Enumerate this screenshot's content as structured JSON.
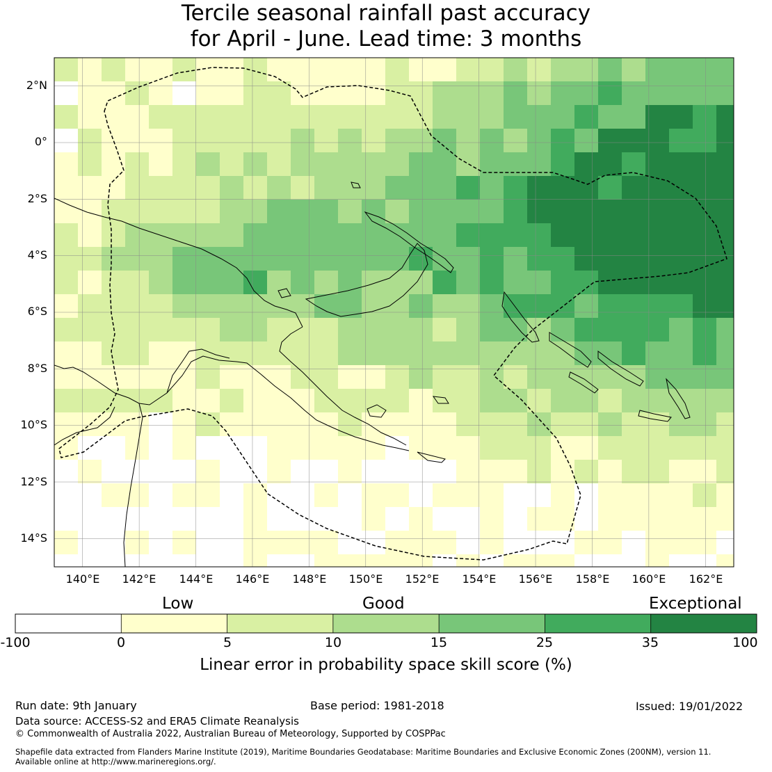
{
  "title": {
    "line1": "Tercile seasonal rainfall past accuracy",
    "line2": "for April - June. Lead time: 3 months"
  },
  "map": {
    "lat_ticks": [
      "2°N",
      "0°",
      "2°S",
      "4°S",
      "6°S",
      "8°S",
      "10°S",
      "12°S",
      "14°S"
    ],
    "lon_ticks": [
      "140°E",
      "142°E",
      "144°E",
      "146°E",
      "148°E",
      "150°E",
      "152°E",
      "154°E",
      "156°E",
      "158°E",
      "160°E",
      "162°E"
    ],
    "lat_tick_values": [
      2,
      0,
      -2,
      -4,
      -6,
      -8,
      -10,
      -12,
      -14
    ],
    "lon_tick_values": [
      140,
      142,
      144,
      146,
      148,
      150,
      152,
      154,
      156,
      158,
      160,
      162
    ],
    "lon_range": [
      139,
      163
    ],
    "lat_range": [
      -15,
      3
    ],
    "region": "Papua New Guinea EEZ"
  },
  "colorbar": {
    "category_labels": [
      "Low",
      "Good",
      "Exceptional"
    ],
    "tick_labels": [
      "-100",
      "0",
      "5",
      "10",
      "15",
      "25",
      "35",
      "100"
    ],
    "colors": [
      "#ffffff",
      "#ffffcc",
      "#d9f0a3",
      "#addd8e",
      "#78c679",
      "#41ab5d",
      "#238443"
    ],
    "axis_label": "Linear error in probability space skill score (%)"
  },
  "footer": {
    "run_date": "Run date: 9th January",
    "base_period": "Base period: 1981-2018",
    "issued": "Issued: 19/01/2022",
    "data_source": "Data source: ACCESS-S2 and ERA5 Climate Reanalysis",
    "copyright": "© Commonwealth of Australia 2022, Australian Bureau of Meteorology, Supported by COSPPac",
    "shapefile_line1": "Shapefile data extracted from Flanders Marine Institute (2019), Maritime Boundaries Geodatabase: Maritime Boundaries and Exclusive Economic Zones (200NM), version 11.",
    "shapefile_line2": "Available online at http://www.marineregions.org/."
  }
}
